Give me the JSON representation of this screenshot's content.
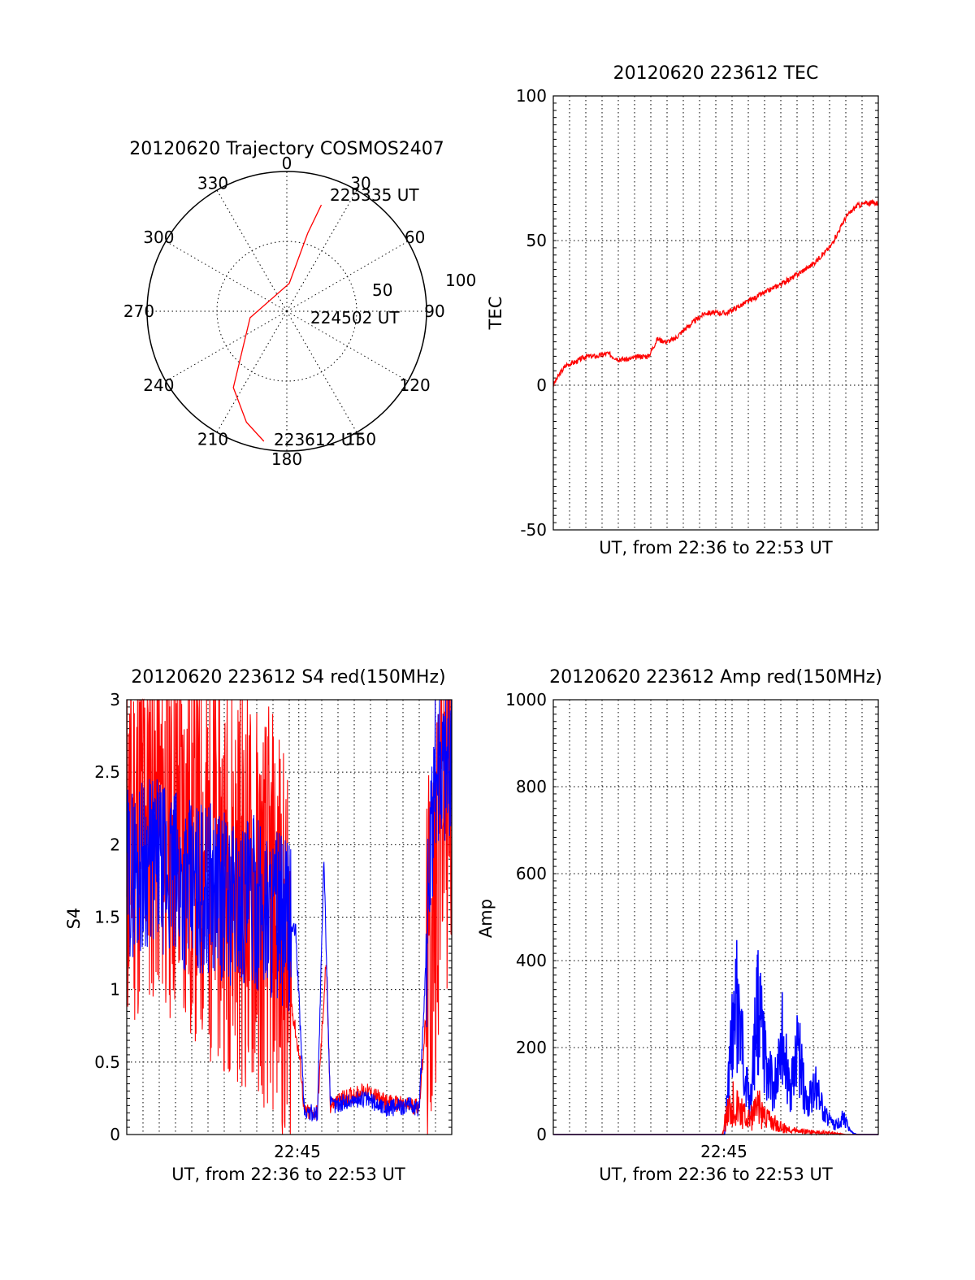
{
  "colors": {
    "red": "#ff0000",
    "blue": "#0000ff",
    "axis": "#000000"
  },
  "chart_data": [
    {
      "type": "polar",
      "title": "20120620 Trajectory COSMOS2407",
      "angle_ticks": [
        "0",
        "30",
        "60",
        "90",
        "120",
        "150",
        "180",
        "210",
        "240",
        "270",
        "300",
        "330"
      ],
      "radius_labels": [
        "50",
        "100"
      ],
      "annotations": [
        "225335 UT",
        "224502 UT",
        "223612 UT"
      ],
      "trajectory": {
        "color": "#ff0000",
        "points": [
          {
            "azimuth": 190,
            "elevation": 5
          },
          {
            "azimuth": 200,
            "elevation": 14
          },
          {
            "azimuth": 215,
            "elevation": 30
          },
          {
            "azimuth": 260,
            "elevation": 66
          },
          {
            "azimuth": 5,
            "elevation": 72
          },
          {
            "azimuth": 15,
            "elevation": 38
          },
          {
            "azimuth": 18,
            "elevation": 18
          }
        ]
      }
    },
    {
      "type": "line",
      "title": "20120620 223612 TEC",
      "xlabel": "UT, from 22:36 to 22:53 UT",
      "ylabel": "TEC",
      "ylim": [
        -50,
        100
      ],
      "yticks": [
        "-50",
        "0",
        "50",
        "100"
      ],
      "grid": true,
      "series": [
        {
          "color": "#ff0000",
          "points": [
            [
              0,
              0
            ],
            [
              0.3,
              4
            ],
            [
              0.6,
              7
            ],
            [
              1.0,
              8
            ],
            [
              1.5,
              10
            ],
            [
              2.0,
              10
            ],
            [
              2.5,
              11
            ],
            [
              3.0,
              9
            ],
            [
              3.5,
              9
            ],
            [
              4.0,
              10
            ],
            [
              4.4,
              10
            ],
            [
              4.8,
              16
            ],
            [
              5.2,
              15
            ],
            [
              5.6,
              16
            ],
            [
              6.0,
              19
            ],
            [
              6.5,
              22
            ],
            [
              7.0,
              25
            ],
            [
              7.5,
              25
            ],
            [
              8.0,
              25
            ],
            [
              8.5,
              27
            ],
            [
              9.0,
              29
            ],
            [
              10.0,
              33
            ],
            [
              11.0,
              37
            ],
            [
              12.0,
              42
            ],
            [
              12.8,
              48
            ],
            [
              13.5,
              58
            ],
            [
              14.0,
              62
            ],
            [
              14.5,
              63
            ],
            [
              15.0,
              63
            ]
          ]
        }
      ]
    },
    {
      "type": "line",
      "title": "20120620 223612 S4 red(150MHz)",
      "xlabel": "UT, from 22:36 to 22:53 UT",
      "ylabel": "S4",
      "xtick_labels": [
        "22:45"
      ],
      "ylim": [
        0,
        3
      ],
      "yticks": [
        "0",
        "0.5",
        "1",
        "1.5",
        "2",
        "2.5",
        "3"
      ],
      "grid": true,
      "series": [
        {
          "color": "#ff0000",
          "points": [
            [
              0,
              2.0
            ],
            [
              1,
              2.3
            ],
            [
              2,
              2.2
            ],
            [
              3,
              2.0
            ],
            [
              4,
              1.9
            ],
            [
              5,
              1.8
            ],
            [
              6,
              1.6
            ],
            [
              7,
              1.5
            ],
            [
              7.5,
              1.0
            ],
            [
              8.0,
              0.5
            ],
            [
              8.2,
              0.15
            ],
            [
              8.8,
              0.15
            ],
            [
              9.2,
              1.2
            ],
            [
              9.4,
              0.2
            ],
            [
              10,
              0.25
            ],
            [
              11,
              0.3
            ],
            [
              12,
              0.22
            ],
            [
              13,
              0.2
            ],
            [
              13.5,
              0.2
            ],
            [
              14,
              1.2
            ],
            [
              14.5,
              2.3
            ],
            [
              15,
              2.5
            ]
          ]
        },
        {
          "color": "#0000ff",
          "points": [
            [
              0,
              1.8
            ],
            [
              1,
              1.9
            ],
            [
              2,
              1.8
            ],
            [
              3,
              1.7
            ],
            [
              4,
              1.7
            ],
            [
              5,
              1.6
            ],
            [
              6,
              1.6
            ],
            [
              7,
              1.5
            ],
            [
              7.8,
              1.4
            ],
            [
              8.2,
              0.15
            ],
            [
              8.8,
              0.15
            ],
            [
              9.1,
              1.9
            ],
            [
              9.4,
              0.2
            ],
            [
              10,
              0.22
            ],
            [
              11,
              0.25
            ],
            [
              12,
              0.18
            ],
            [
              13,
              0.2
            ],
            [
              13.5,
              0.18
            ],
            [
              13.9,
              1.5
            ],
            [
              14.3,
              2.6
            ],
            [
              15,
              2.6
            ]
          ]
        }
      ]
    },
    {
      "type": "line",
      "title": "20120620 223612 Amp red(150MHz)",
      "xlabel": "UT, from 22:36 to 22:53 UT",
      "ylabel": "Amp",
      "xtick_labels": [
        "22:45"
      ],
      "ylim": [
        0,
        1000
      ],
      "yticks": [
        "0",
        "200",
        "400",
        "600",
        "800",
        "1000"
      ],
      "grid": true,
      "series": [
        {
          "color": "#ff0000",
          "points": [
            [
              0,
              0
            ],
            [
              7.8,
              0
            ],
            [
              8.0,
              80
            ],
            [
              8.3,
              140
            ],
            [
              8.6,
              100
            ],
            [
              9.0,
              60
            ],
            [
              9.5,
              110
            ],
            [
              10.0,
              60
            ],
            [
              10.5,
              30
            ],
            [
              11.0,
              20
            ],
            [
              11.5,
              15
            ],
            [
              12.0,
              10
            ],
            [
              13.0,
              5
            ],
            [
              13.5,
              0
            ],
            [
              15,
              0
            ]
          ]
        },
        {
          "color": "#0000ff",
          "points": [
            [
              0,
              0
            ],
            [
              7.9,
              0
            ],
            [
              8.2,
              300
            ],
            [
              8.5,
              480
            ],
            [
              8.8,
              250
            ],
            [
              9.1,
              100
            ],
            [
              9.4,
              460
            ],
            [
              9.8,
              250
            ],
            [
              10.2,
              150
            ],
            [
              10.5,
              370
            ],
            [
              10.9,
              150
            ],
            [
              11.3,
              300
            ],
            [
              11.7,
              100
            ],
            [
              12.1,
              170
            ],
            [
              12.5,
              70
            ],
            [
              13.0,
              30
            ],
            [
              13.4,
              60
            ],
            [
              13.7,
              10
            ],
            [
              14.0,
              0
            ],
            [
              15,
              0
            ]
          ]
        }
      ]
    }
  ]
}
